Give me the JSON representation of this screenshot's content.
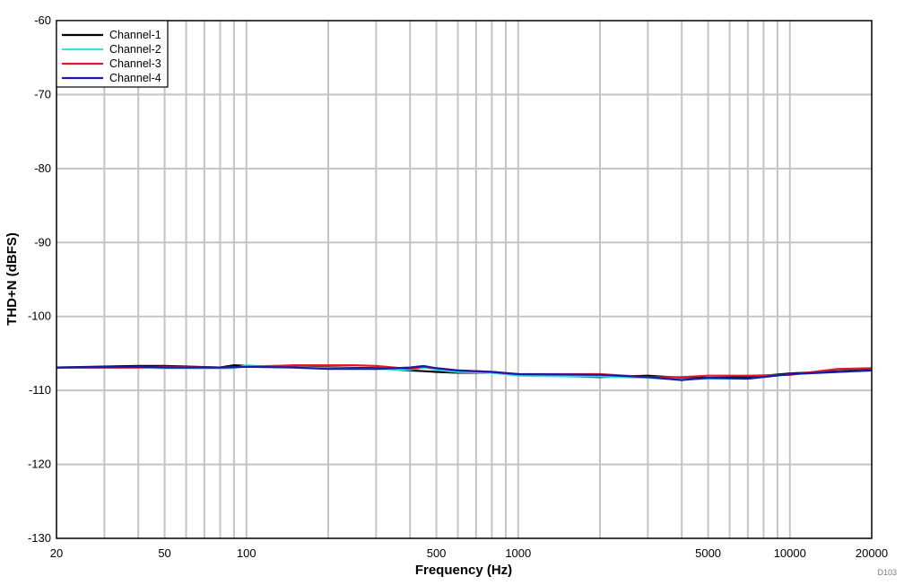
{
  "chart_data": {
    "type": "line",
    "xlabel": "Frequency (Hz)",
    "ylabel": "THD+N (dBFS)",
    "xscale": "log",
    "xlim": [
      20,
      20000
    ],
    "ylim": [
      -130,
      -60
    ],
    "grid": true,
    "legend_position": "top-left",
    "x_ticks": [
      20,
      50,
      100,
      500,
      1000,
      5000,
      10000,
      20000
    ],
    "x_tick_labels": [
      "20",
      "50",
      "100",
      "500",
      "1000",
      "5000",
      "10000",
      "20000"
    ],
    "y_ticks": [
      -60,
      -70,
      -80,
      -90,
      -100,
      -110,
      -120,
      -130
    ],
    "y_tick_labels": [
      "-60",
      "-70",
      "-80",
      "-90",
      "-100",
      "-110",
      "-120",
      "-130"
    ],
    "footnote": "D103",
    "series": [
      {
        "name": "Channel-1",
        "color": "#000000",
        "points": [
          [
            20,
            -106.9
          ],
          [
            40,
            -106.7
          ],
          [
            50,
            -106.7
          ],
          [
            80,
            -106.9
          ],
          [
            90,
            -106.6
          ],
          [
            120,
            -106.8
          ],
          [
            200,
            -106.9
          ],
          [
            300,
            -107.0
          ],
          [
            400,
            -107.3
          ],
          [
            450,
            -107.4
          ],
          [
            500,
            -107.5
          ],
          [
            600,
            -107.6
          ],
          [
            800,
            -107.6
          ],
          [
            1000,
            -107.9
          ],
          [
            2000,
            -108.2
          ],
          [
            3000,
            -108.0
          ],
          [
            4000,
            -108.3
          ],
          [
            5000,
            -108.3
          ],
          [
            7000,
            -108.2
          ],
          [
            10000,
            -107.7
          ],
          [
            15000,
            -107.4
          ],
          [
            20000,
            -107.2
          ]
        ]
      },
      {
        "name": "Channel-2",
        "color": "#33e0e6",
        "points": [
          [
            20,
            -106.9
          ],
          [
            40,
            -106.9
          ],
          [
            50,
            -107.0
          ],
          [
            90,
            -107.0
          ],
          [
            100,
            -106.6
          ],
          [
            120,
            -106.8
          ],
          [
            200,
            -107.0
          ],
          [
            300,
            -107.1
          ],
          [
            400,
            -107.2
          ],
          [
            450,
            -106.9
          ],
          [
            500,
            -107.2
          ],
          [
            600,
            -107.5
          ],
          [
            800,
            -107.6
          ],
          [
            1000,
            -108.0
          ],
          [
            1500,
            -108.1
          ],
          [
            2000,
            -108.1
          ],
          [
            3000,
            -108.3
          ],
          [
            4000,
            -108.5
          ],
          [
            5000,
            -108.4
          ],
          [
            7000,
            -108.4
          ],
          [
            10000,
            -107.8
          ],
          [
            15000,
            -107.5
          ],
          [
            20000,
            -107.3
          ]
        ]
      },
      {
        "name": "Channel-3",
        "color": "#e01b24",
        "points": [
          [
            20,
            -106.9
          ],
          [
            40,
            -106.9
          ],
          [
            50,
            -106.8
          ],
          [
            80,
            -106.9
          ],
          [
            100,
            -106.8
          ],
          [
            150,
            -106.6
          ],
          [
            200,
            -106.6
          ],
          [
            250,
            -106.6
          ],
          [
            300,
            -106.7
          ],
          [
            400,
            -107.1
          ],
          [
            450,
            -106.8
          ],
          [
            500,
            -107.0
          ],
          [
            600,
            -107.3
          ],
          [
            800,
            -107.5
          ],
          [
            1000,
            -107.8
          ],
          [
            2000,
            -107.8
          ],
          [
            3000,
            -108.2
          ],
          [
            4000,
            -108.2
          ],
          [
            5000,
            -108.0
          ],
          [
            7000,
            -108.0
          ],
          [
            10000,
            -107.9
          ],
          [
            15000,
            -107.1
          ],
          [
            20000,
            -107.0
          ]
        ]
      },
      {
        "name": "Channel-4",
        "color": "#1a1aa8",
        "points": [
          [
            20,
            -106.9
          ],
          [
            40,
            -106.8
          ],
          [
            50,
            -106.9
          ],
          [
            80,
            -106.9
          ],
          [
            100,
            -106.8
          ],
          [
            150,
            -106.9
          ],
          [
            200,
            -107.1
          ],
          [
            300,
            -107.1
          ],
          [
            400,
            -106.9
          ],
          [
            450,
            -106.7
          ],
          [
            500,
            -107.0
          ],
          [
            600,
            -107.3
          ],
          [
            800,
            -107.5
          ],
          [
            1000,
            -107.8
          ],
          [
            2000,
            -107.9
          ],
          [
            3000,
            -108.2
          ],
          [
            4000,
            -108.6
          ],
          [
            5000,
            -108.3
          ],
          [
            7000,
            -108.4
          ],
          [
            10000,
            -107.8
          ],
          [
            15000,
            -107.5
          ],
          [
            20000,
            -107.3
          ]
        ]
      }
    ]
  }
}
